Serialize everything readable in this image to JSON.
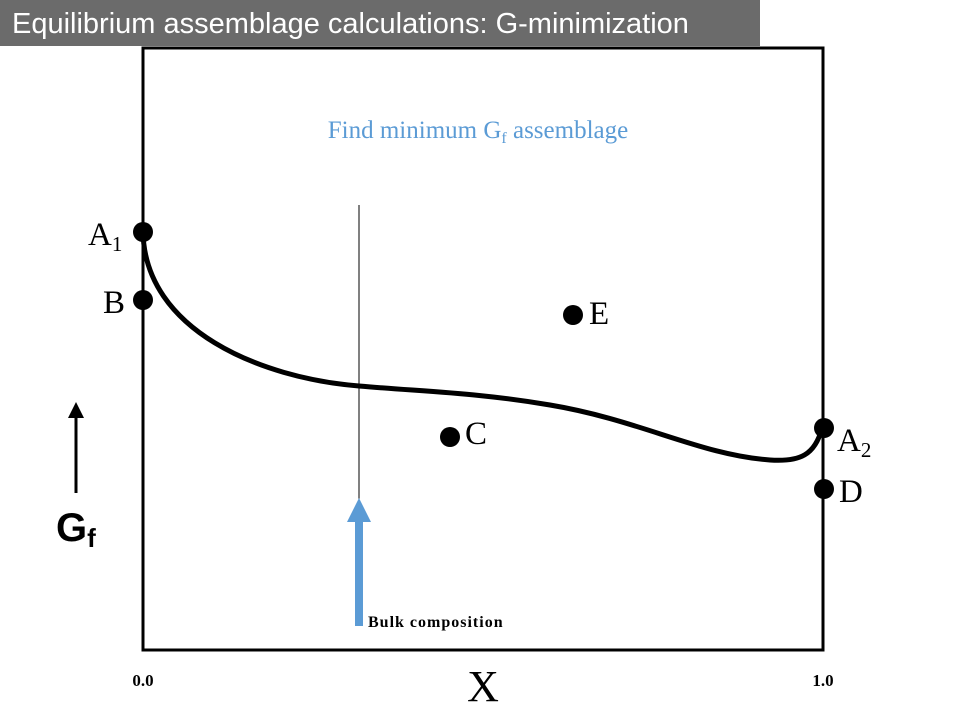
{
  "title": "Equilibrium assemblage calculations: G-minimization",
  "diagram": {
    "heading": {
      "prefix": "Find minimum G",
      "subscript": "f",
      "suffix": " assemblage",
      "color": "#5b9bd5"
    },
    "points": [
      {
        "id": "A1",
        "label": "A",
        "sub": "1"
      },
      {
        "id": "B",
        "label": "B",
        "sub": ""
      },
      {
        "id": "E",
        "label": "E",
        "sub": ""
      },
      {
        "id": "C",
        "label": "C",
        "sub": ""
      },
      {
        "id": "A2",
        "label": "A",
        "sub": "2"
      },
      {
        "id": "D",
        "label": "D",
        "sub": ""
      }
    ],
    "y_axis_label": {
      "main": "G",
      "sub": "f"
    },
    "x_axis_label": "X",
    "x_min_label": "0.0",
    "x_max_label": "1.0",
    "bulk_label": "Bulk  composition",
    "arrow_color": "#5b9bd5"
  }
}
